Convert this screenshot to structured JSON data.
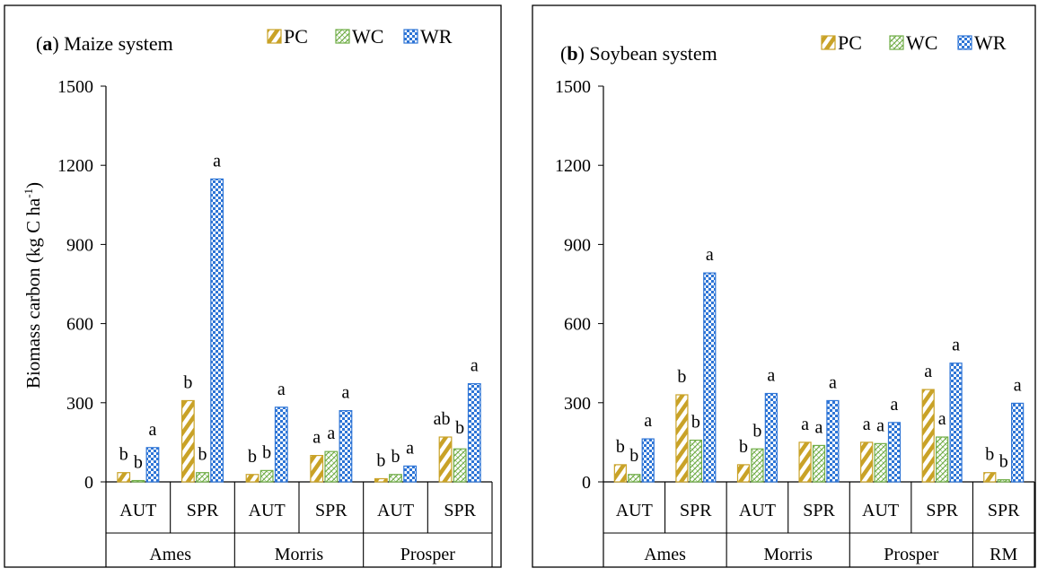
{
  "ylabel_text": "Biomass carbon (kg C ha",
  "ylabel_sup": "-1",
  "ylabel_close": ")",
  "colors": {
    "PC": "#C9A227",
    "WC": "#70AD47",
    "WR": "#2E75D6"
  },
  "chart_data": [
    {
      "type": "bar",
      "title_letter": "a",
      "title_rest": " Maize system",
      "ylim": [
        0,
        1500
      ],
      "yticks": [
        "0",
        "300",
        "600",
        "900",
        "1200",
        "1500"
      ],
      "legend": [
        "PC",
        "WC",
        "WR"
      ],
      "groups": [
        {
          "site": "Ames",
          "seasons": [
            {
              "season": "AUT",
              "values": [
                35,
                5,
                130
              ],
              "letters": [
                "b",
                "b",
                "a"
              ]
            },
            {
              "season": "SPR",
              "values": [
                308,
                35,
                1148
              ],
              "letters": [
                "b",
                "b",
                "a"
              ]
            }
          ]
        },
        {
          "site": "Morris",
          "seasons": [
            {
              "season": "AUT",
              "values": [
                28,
                43,
                283
              ],
              "letters": [
                "b",
                "b",
                "a"
              ]
            },
            {
              "season": "SPR",
              "values": [
                100,
                115,
                270
              ],
              "letters": [
                "a",
                "a",
                "a"
              ]
            }
          ]
        },
        {
          "site": "Prosper",
          "seasons": [
            {
              "season": "AUT",
              "values": [
                12,
                28,
                60
              ],
              "letters": [
                "b",
                "b",
                "a"
              ]
            },
            {
              "season": "SPR",
              "values": [
                170,
                125,
                372
              ],
              "letters": [
                "ab",
                "b",
                "a"
              ]
            }
          ]
        }
      ]
    },
    {
      "type": "bar",
      "title_letter": "b",
      "title_rest": " Soybean system",
      "ylim": [
        0,
        1500
      ],
      "yticks": [
        "0",
        "300",
        "600",
        "900",
        "1200",
        "1500"
      ],
      "legend": [
        "PC",
        "WC",
        "WR"
      ],
      "groups": [
        {
          "site": "Ames",
          "seasons": [
            {
              "season": "AUT",
              "values": [
                65,
                28,
                163
              ],
              "letters": [
                "b",
                "b",
                "a"
              ]
            },
            {
              "season": "SPR",
              "values": [
                330,
                158,
                792
              ],
              "letters": [
                "b",
                "b",
                "a"
              ]
            }
          ]
        },
        {
          "site": "Morris",
          "seasons": [
            {
              "season": "AUT",
              "values": [
                65,
                125,
                335
              ],
              "letters": [
                "b",
                "b",
                "a"
              ]
            },
            {
              "season": "SPR",
              "values": [
                150,
                138,
                308
              ],
              "letters": [
                "a",
                "a",
                "a"
              ]
            }
          ]
        },
        {
          "site": "Prosper",
          "seasons": [
            {
              "season": "AUT",
              "values": [
                150,
                145,
                225
              ],
              "letters": [
                "a",
                "a",
                "a"
              ]
            },
            {
              "season": "SPR",
              "values": [
                350,
                170,
                450
              ],
              "letters": [
                "a",
                "a",
                "a"
              ]
            }
          ]
        },
        {
          "site": "RM",
          "seasons": [
            {
              "season": "SPR",
              "values": [
                35,
                8,
                298
              ],
              "letters": [
                "b",
                "b",
                "a"
              ]
            }
          ]
        }
      ]
    }
  ]
}
